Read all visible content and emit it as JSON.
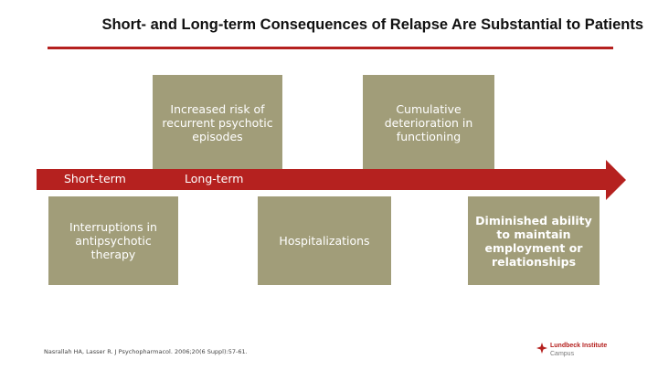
{
  "title": "Short- and Long-term Consequences of Relapse Are Substantial to Patients",
  "timeline": {
    "short_term_label": "Short-term",
    "long_term_label": "Long-term"
  },
  "boxes_top": [
    {
      "text": "Increased risk of recurrent psychotic episodes"
    },
    {
      "text": "Cumulative deterioration in functioning"
    }
  ],
  "boxes_bottom": [
    {
      "text": "Interruptions in antipsychotic therapy"
    },
    {
      "text": "Hospitalizations"
    },
    {
      "text": "Diminished ability to maintain employment or relationships"
    }
  ],
  "citation": "Nasrallah HA, Lasser R. J Psychopharmacol. 2006;20(6 Suppl):57-61.",
  "logo": {
    "name": "Lundbeck Institute",
    "sub": "Campus"
  },
  "colors": {
    "accent": "#b5211f",
    "box": "#a19d79"
  }
}
